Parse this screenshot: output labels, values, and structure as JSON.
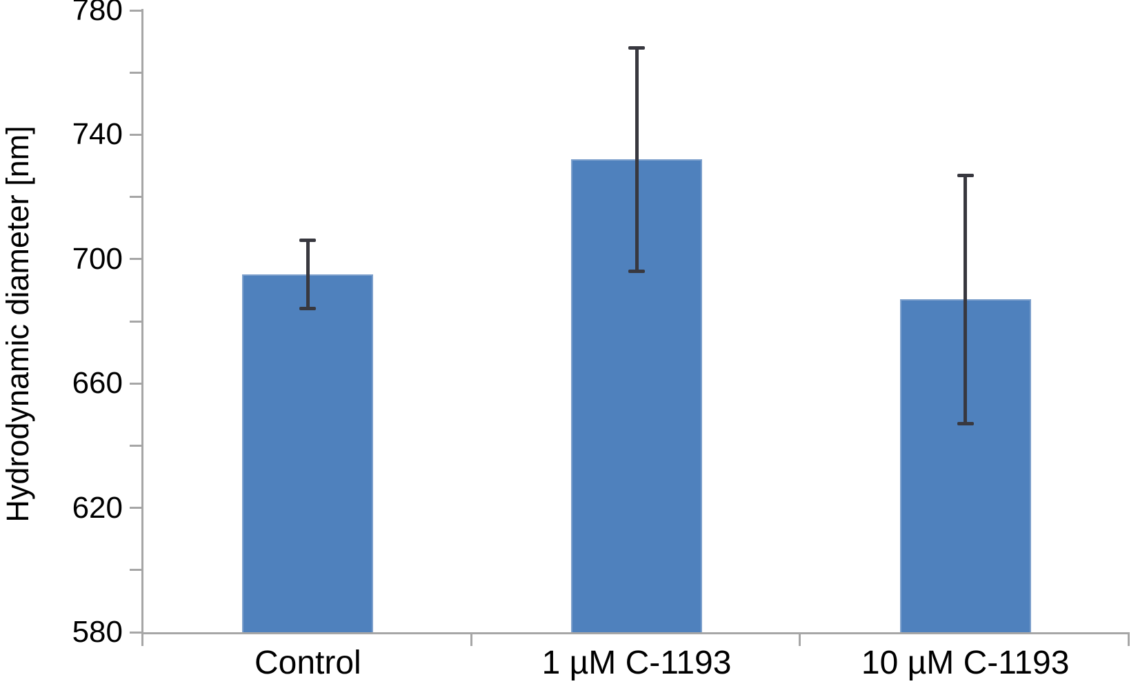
{
  "chart_data": {
    "type": "bar",
    "title": "",
    "xlabel": "",
    "ylabel": "Hydrodynamic diameter [nm]",
    "categories": [
      "Control",
      "1 µM C-1193",
      "10 µM C-1193"
    ],
    "values": [
      695,
      732,
      687
    ],
    "error_bars": [
      11,
      36,
      40
    ],
    "ylim": [
      580,
      780
    ],
    "yticks": [
      580,
      620,
      660,
      700,
      740,
      780
    ],
    "minor_tick_step": 20,
    "grid": false,
    "legend": false,
    "colors": {
      "bar_fill": "#4f81bd",
      "bar_edge": "#7da0cc",
      "error_bar": "#38383f",
      "axis": "#a6a6a6",
      "text": "#000000",
      "background": "#ffffff"
    }
  }
}
